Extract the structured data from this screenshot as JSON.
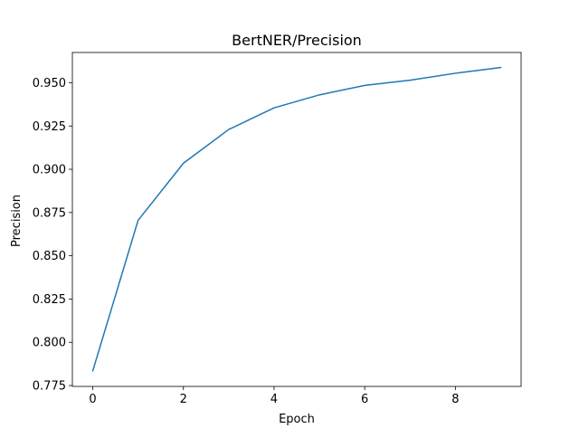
{
  "chart_data": {
    "type": "line",
    "title": "BertNER/Precision",
    "xlabel": "Epoch",
    "ylabel": "Precision",
    "xlim": [
      -0.45,
      9.45
    ],
    "ylim": [
      0.7745,
      0.9675
    ],
    "x_ticks": [
      0,
      2,
      4,
      6,
      8
    ],
    "x_tick_labels": [
      "0",
      "2",
      "4",
      "6",
      "8"
    ],
    "y_ticks": [
      0.775,
      0.8,
      0.825,
      0.85,
      0.875,
      0.9,
      0.925,
      0.95
    ],
    "y_tick_labels": [
      "0.775",
      "0.800",
      "0.825",
      "0.850",
      "0.875",
      "0.900",
      "0.925",
      "0.950"
    ],
    "grid": false,
    "series": [
      {
        "color": "#1f77b4",
        "x": [
          0,
          1,
          2,
          3,
          4,
          5,
          6,
          7,
          8,
          9
        ],
        "y": [
          0.7835,
          0.8705,
          0.9035,
          0.923,
          0.9355,
          0.943,
          0.9485,
          0.9515,
          0.9555,
          0.9588
        ]
      }
    ]
  }
}
